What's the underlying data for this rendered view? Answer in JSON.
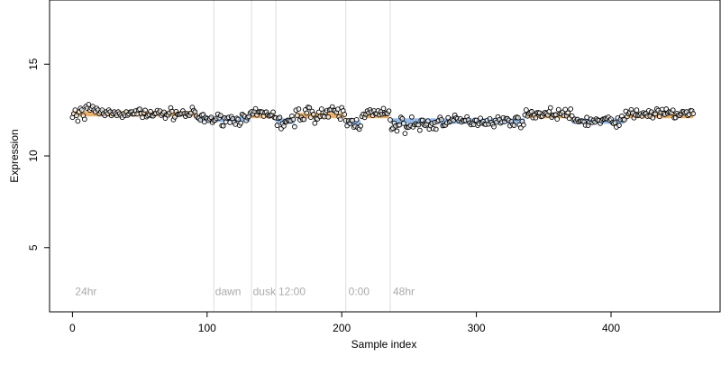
{
  "chart_data": {
    "type": "scatter",
    "title": "",
    "xlabel": "Sample index",
    "ylabel": "Expression",
    "xlim": [
      -17,
      481
    ],
    "ylim": [
      1.5,
      18.5
    ],
    "x_ticks": [
      0,
      100,
      200,
      300,
      400
    ],
    "y_ticks": [
      5,
      10,
      15
    ],
    "grid": false,
    "legend": "none",
    "annotations": [
      {
        "label": "24hr",
        "x": 0
      },
      {
        "label": "dawn",
        "x": 104
      },
      {
        "label": "dusk",
        "x": 132
      },
      {
        "label": "12:00",
        "x": 151
      },
      {
        "label": "0:00",
        "x": 203
      },
      {
        "label": "48hr",
        "x": 236
      }
    ],
    "vlines": [
      105,
      133,
      151,
      203,
      236
    ],
    "fit_segments": [
      {
        "from": 0,
        "to": 92,
        "level": 12.3,
        "kind": "high"
      },
      {
        "from": 93,
        "to": 132,
        "level": 12.0,
        "kind": "low"
      },
      {
        "from": 133,
        "to": 150,
        "level": 12.2,
        "kind": "high"
      },
      {
        "from": 151,
        "to": 165,
        "level": 11.9,
        "kind": "low"
      },
      {
        "from": 166,
        "to": 202,
        "level": 12.2,
        "kind": "high"
      },
      {
        "from": 203,
        "to": 214,
        "level": 11.8,
        "kind": "low"
      },
      {
        "from": 215,
        "to": 235,
        "level": 12.2,
        "kind": "high"
      },
      {
        "from": 236,
        "to": 270,
        "level": 11.9,
        "kind": "low"
      },
      {
        "from": 271,
        "to": 336,
        "level": 11.9,
        "kind": "low"
      },
      {
        "from": 337,
        "to": 370,
        "level": 12.2,
        "kind": "high"
      },
      {
        "from": 371,
        "to": 410,
        "level": 11.9,
        "kind": "low"
      },
      {
        "from": 411,
        "to": 461,
        "level": 12.2,
        "kind": "high"
      }
    ],
    "series": [
      {
        "point_count": 462,
        "x_start": 0,
        "x_end": 461,
        "segments": [
          {
            "from": 0,
            "to": 40,
            "values": [
              12.1,
              12.3,
              12.5,
              12.2,
              11.9,
              12.4,
              12.6,
              12.5,
              12.2,
              12.0,
              12.7,
              12.6,
              12.8,
              12.5,
              12.6,
              12.7,
              12.5,
              12.4,
              12.6,
              12.5,
              12.3,
              12.4,
              12.5,
              12.3,
              12.2,
              12.4,
              12.3,
              12.5,
              12.4,
              12.2,
              12.3,
              12.4,
              12.3,
              12.2,
              12.4,
              12.3,
              12.2,
              12.1,
              12.3,
              12.2,
              12.4
            ]
          },
          {
            "from": 41,
            "to": 92,
            "mean": 12.3,
            "spread": 0.2
          },
          {
            "from": 93,
            "to": 132,
            "mean": 12.0,
            "spread": 0.2
          },
          {
            "from": 133,
            "to": 150,
            "mean": 12.3,
            "spread": 0.2
          },
          {
            "from": 151,
            "to": 165,
            "mean": 11.8,
            "spread": 0.3
          },
          {
            "from": 166,
            "to": 202,
            "mean": 12.3,
            "spread": 0.3
          },
          {
            "from": 203,
            "to": 214,
            "mean": 11.8,
            "spread": 0.3
          },
          {
            "from": 215,
            "to": 235,
            "mean": 12.3,
            "spread": 0.2
          },
          {
            "from": 236,
            "to": 270,
            "mean": 11.7,
            "spread": 0.3
          },
          {
            "from": 271,
            "to": 336,
            "mean": 11.9,
            "spread": 0.2
          },
          {
            "from": 337,
            "to": 370,
            "mean": 12.3,
            "spread": 0.2
          },
          {
            "from": 371,
            "to": 410,
            "mean": 11.9,
            "spread": 0.2
          },
          {
            "from": 411,
            "to": 461,
            "mean": 12.3,
            "spread": 0.2
          }
        ]
      }
    ]
  },
  "colors": {
    "axis": "#000000",
    "vline": "#dddddd",
    "annotation_text": "#aaaaaa",
    "fit_high": "#e8a860",
    "fit_low": "#8ab2e6",
    "point_stroke": "#000000",
    "point_fill": "#ffffff"
  }
}
